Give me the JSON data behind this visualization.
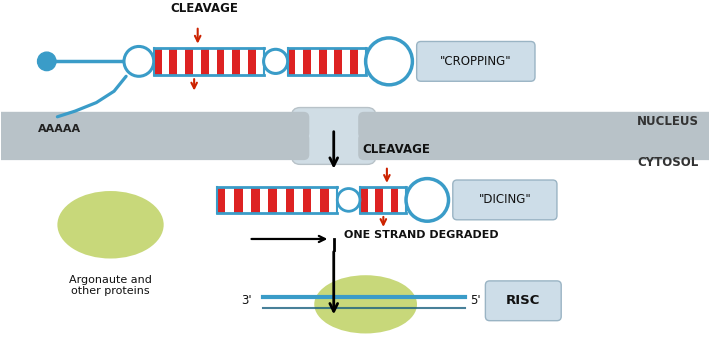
{
  "bg_color": "#ffffff",
  "blue": "#3a9cc8",
  "blue_line": "#3a9cc8",
  "red": "#cc2200",
  "green": "#c8d87a",
  "gray_bar": "#b8c2c8",
  "box_fill": "#cddde8",
  "box_edge": "#9ab4c4",
  "label_nucleus": "NUCLEUS",
  "label_cytosol": "CYTOSOL",
  "label_cleavage": "CLEAVAGE",
  "label_cropping": "\"CROPPING\"",
  "label_dicing": "\"DICING\"",
  "label_aaaaa": "AAAAA",
  "label_one_strand": "ONE STRAND DEGRADED",
  "label_argonaute": "Argonaute and\nother proteins",
  "label_risc": "RISC",
  "label_3p": "3'",
  "label_5p": "5'"
}
